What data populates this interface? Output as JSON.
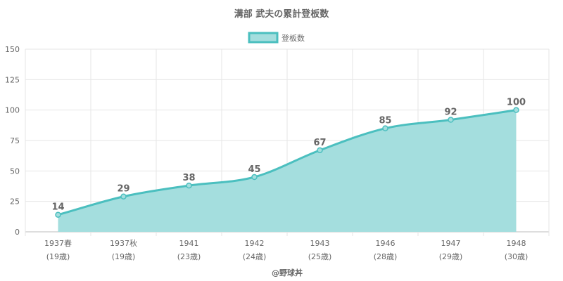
{
  "chart_data": {
    "type": "area",
    "title": "溝部 武夫の累計登板数",
    "legend": {
      "label": "登板数",
      "position": "top"
    },
    "categories": [
      "1937春",
      "1937秋",
      "1941",
      "1942",
      "1943",
      "1946",
      "1947",
      "1948"
    ],
    "sub_labels": [
      "(19歳)",
      "(19歳)",
      "(23歳)",
      "(24歳)",
      "(25歳)",
      "(28歳)",
      "(29歳)",
      "(30歳)"
    ],
    "series": [
      {
        "name": "登板数",
        "values": [
          14,
          29,
          38,
          45,
          67,
          85,
          92,
          100
        ]
      }
    ],
    "ylim": [
      0,
      150
    ],
    "yticks": [
      0,
      25,
      50,
      75,
      100,
      125,
      150
    ],
    "grid": true,
    "colors": {
      "line": "#4bbfbf",
      "fill": "#a4dede",
      "grid": "#e6e6e6",
      "text": "#666666"
    },
    "credit": "@野球丼"
  }
}
